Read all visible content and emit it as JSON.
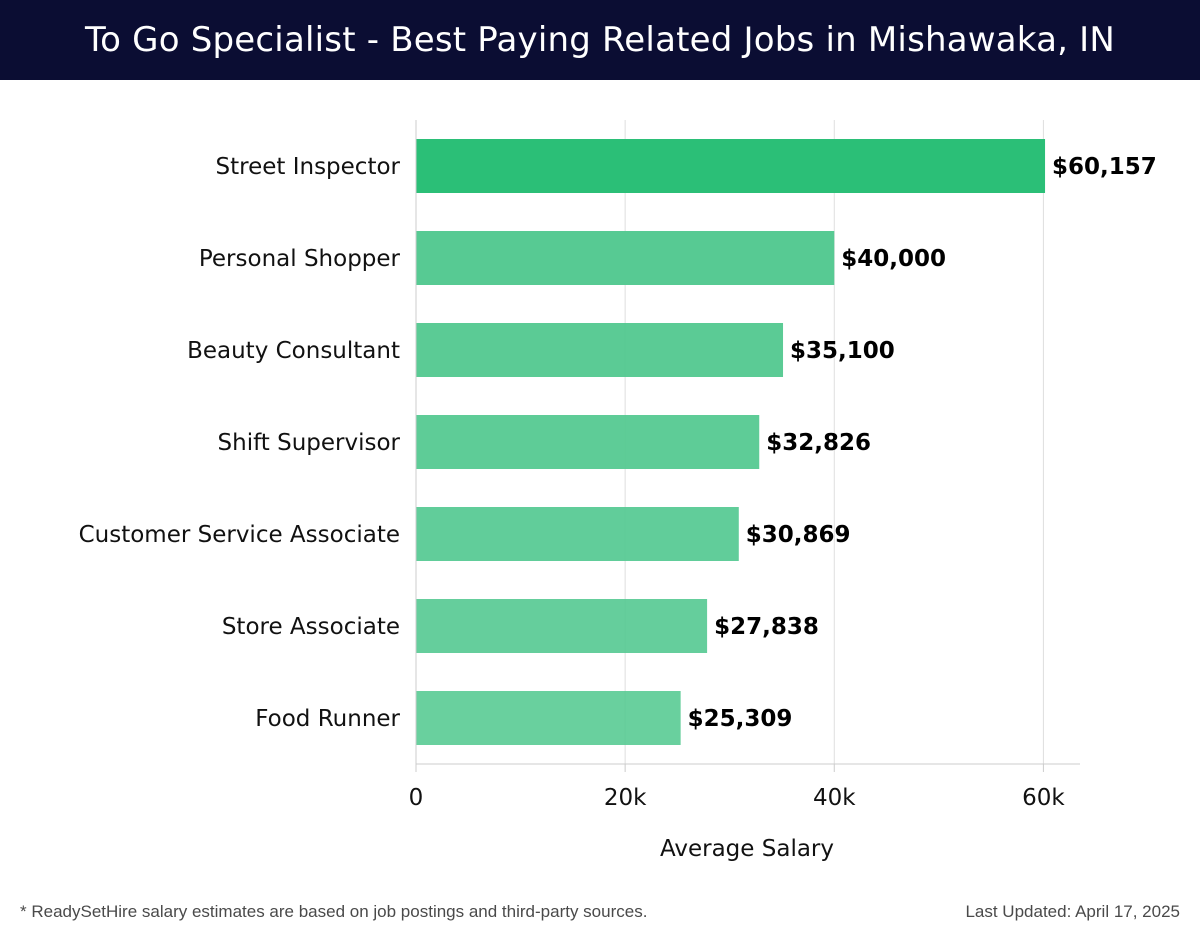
{
  "header": {
    "title": "To Go Specialist - Best Paying Related Jobs in Mishawaka, IN"
  },
  "chart_data": {
    "type": "bar",
    "orientation": "horizontal",
    "categories": [
      "Street Inspector",
      "Personal Shopper",
      "Beauty Consultant",
      "Shift Supervisor",
      "Customer Service Associate",
      "Store Associate",
      "Food Runner"
    ],
    "values": [
      60157,
      40000,
      35100,
      32826,
      30869,
      27838,
      25309
    ],
    "value_labels": [
      "$60,157",
      "$40,000",
      "$35,100",
      "$32,826",
      "$30,869",
      "$27,838",
      "$25,309"
    ],
    "xlabel": "Average Salary",
    "ylabel": "",
    "xlim": [
      0,
      63500
    ],
    "x_ticks": [
      0,
      20000,
      40000,
      60000
    ],
    "x_tick_labels": [
      "0",
      "20k",
      "40k",
      "60k"
    ],
    "grid": "vertical",
    "colors": {
      "highlight": "#2bbf77",
      "bar": "#54c991",
      "grid": "#dedede",
      "axis": "#cccccc"
    }
  },
  "footer": {
    "note": "* ReadySetHire salary estimates are based on job postings and third-party sources.",
    "updated": "Last Updated: April 17, 2025"
  }
}
